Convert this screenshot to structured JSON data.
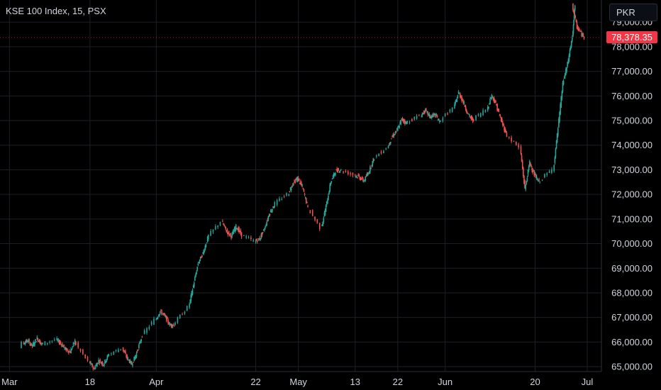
{
  "header": {
    "symbol_title": "KSE 100 Index, 15, PSX",
    "currency": "PKR"
  },
  "colors": {
    "up": "#26a69a",
    "down": "#ef5350",
    "grid": "#1c1f26",
    "last_price": "#f23645",
    "background": "#000000"
  },
  "chart_data": {
    "type": "line",
    "title": "KSE 100 Index, 15, PSX",
    "style": "candlestick",
    "currency": "PKR",
    "grid": true,
    "last_price": 78378.35,
    "last_price_label": "78,378.35",
    "y_ticks": [
      65000,
      66000,
      67000,
      68000,
      69000,
      70000,
      71000,
      72000,
      73000,
      74000,
      75000,
      76000,
      77000,
      78000,
      79000
    ],
    "y_tick_labels": [
      "65,000.00",
      "66,000.00",
      "67,000.00",
      "68,000.00",
      "69,000.00",
      "70,000.00",
      "71,000.00",
      "72,000.00",
      "73,000.00",
      "74,000.00",
      "75,000.00",
      "76,000.00",
      "77,000.00",
      "78,000.00",
      "79,000.00"
    ],
    "x_ticks": [
      "2024-03-01",
      "2024-03-18",
      "2024-04-01",
      "2024-04-22",
      "2024-05-01",
      "2024-05-13",
      "2024-05-22",
      "2024-06-01",
      "2024-06-20",
      "2024-07-01"
    ],
    "x_tick_labels": [
      "Mar",
      "18",
      "Apr",
      "22",
      "May",
      "13",
      "22",
      "Jun",
      "20",
      "Jul"
    ],
    "ylim": [
      64800,
      79900
    ],
    "xlim": [
      "2024-02-28",
      "2024-07-04"
    ],
    "series": [
      {
        "values": [
          [
            "2024-02-29",
            64800
          ],
          [
            "2024-03-01",
            65050
          ],
          [
            "2024-03-04",
            65950
          ],
          [
            "2024-03-05",
            66050
          ],
          [
            "2024-03-06",
            65850
          ],
          [
            "2024-03-07",
            66150
          ],
          [
            "2024-03-08",
            65900
          ],
          [
            "2024-03-11",
            66100
          ],
          [
            "2024-03-12",
            65950
          ],
          [
            "2024-03-13",
            65700
          ],
          [
            "2024-03-14",
            65600
          ],
          [
            "2024-03-15",
            66050
          ],
          [
            "2024-03-18",
            65200
          ],
          [
            "2024-03-19",
            64900
          ],
          [
            "2024-03-20",
            65250
          ],
          [
            "2024-03-21",
            65100
          ],
          [
            "2024-03-22",
            65450
          ],
          [
            "2024-03-25",
            65750
          ],
          [
            "2024-03-26",
            65350
          ],
          [
            "2024-03-27",
            65100
          ],
          [
            "2024-03-28",
            65550
          ],
          [
            "2024-03-29",
            66150
          ],
          [
            "2024-04-01",
            66900
          ],
          [
            "2024-04-02",
            67250
          ],
          [
            "2024-04-03",
            67050
          ],
          [
            "2024-04-04",
            66700
          ],
          [
            "2024-04-05",
            66700
          ],
          [
            "2024-04-08",
            67400
          ],
          [
            "2024-04-09",
            68300
          ],
          [
            "2024-04-10",
            69200
          ],
          [
            "2024-04-11",
            69600
          ],
          [
            "2024-04-12",
            70200
          ],
          [
            "2024-04-15",
            70900
          ],
          [
            "2024-04-16",
            70500
          ],
          [
            "2024-04-17",
            70300
          ],
          [
            "2024-04-18",
            70700
          ],
          [
            "2024-04-19",
            70400
          ],
          [
            "2024-04-22",
            70100
          ],
          [
            "2024-04-23",
            70200
          ],
          [
            "2024-04-24",
            70600
          ],
          [
            "2024-04-25",
            71200
          ],
          [
            "2024-04-26",
            71550
          ],
          [
            "2024-04-29",
            72000
          ],
          [
            "2024-04-30",
            72450
          ],
          [
            "2024-05-01",
            72650
          ],
          [
            "2024-05-02",
            72300
          ],
          [
            "2024-05-03",
            71600
          ],
          [
            "2024-05-06",
            70650
          ],
          [
            "2024-05-07",
            71500
          ],
          [
            "2024-05-08",
            72500
          ],
          [
            "2024-05-09",
            72950
          ],
          [
            "2024-05-10",
            73000
          ],
          [
            "2024-05-13",
            72800
          ],
          [
            "2024-05-14",
            72700
          ],
          [
            "2024-05-15",
            72550
          ],
          [
            "2024-05-16",
            72900
          ],
          [
            "2024-05-17",
            73400
          ],
          [
            "2024-05-20",
            73900
          ],
          [
            "2024-05-21",
            74350
          ],
          [
            "2024-05-22",
            74600
          ],
          [
            "2024-05-23",
            75050
          ],
          [
            "2024-05-24",
            74900
          ],
          [
            "2024-05-27",
            75200
          ],
          [
            "2024-05-28",
            75400
          ],
          [
            "2024-05-29",
            75150
          ],
          [
            "2024-05-30",
            75250
          ],
          [
            "2024-05-31",
            74950
          ],
          [
            "2024-06-03",
            75500
          ],
          [
            "2024-06-04",
            76150
          ],
          [
            "2024-06-05",
            75750
          ],
          [
            "2024-06-06",
            75250
          ],
          [
            "2024-06-07",
            75000
          ],
          [
            "2024-06-10",
            75450
          ],
          [
            "2024-06-11",
            76050
          ],
          [
            "2024-06-12",
            75600
          ],
          [
            "2024-06-13",
            75000
          ],
          [
            "2024-06-14",
            74500
          ],
          [
            "2024-06-17",
            73900
          ],
          [
            "2024-06-18",
            72200
          ],
          [
            "2024-06-19",
            73300
          ],
          [
            "2024-06-20",
            72800
          ],
          [
            "2024-06-21",
            72500
          ],
          [
            "2024-06-24",
            73000
          ],
          [
            "2024-06-25",
            74700
          ],
          [
            "2024-06-26",
            76500
          ],
          [
            "2024-06-27",
            77300
          ],
          [
            "2024-06-28",
            78400
          ],
          [
            "2024-06-28",
            79700
          ],
          [
            "2024-06-29",
            78800
          ],
          [
            "2024-06-30",
            78500
          ],
          [
            "2024-07-01",
            78300
          ],
          [
            "2024-07-02",
            78200
          ],
          [
            "2024-07-02",
            78700
          ],
          [
            "2024-07-03",
            78600
          ],
          [
            "2024-07-03",
            78378
          ]
        ]
      }
    ]
  }
}
